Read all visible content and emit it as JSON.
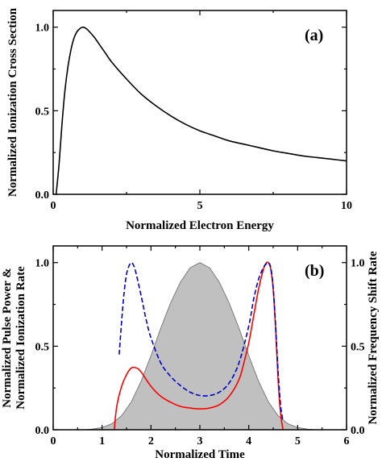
{
  "chart_data": [
    {
      "panel_label": "(a)",
      "type": "line",
      "xlabel": "Normalized Electron Energy",
      "ylabel": "Normalized Ionization Cross Section",
      "xlim": [
        0,
        10
      ],
      "ylim": [
        0,
        1.1
      ],
      "xticks": [
        0,
        5,
        10
      ],
      "xtick_labels": [
        "0",
        "5",
        "10"
      ],
      "yticks": [
        0,
        0.5,
        1.0
      ],
      "ytick_labels": [
        "0.0",
        "0.5",
        "1.0"
      ],
      "grid": false,
      "series": [
        {
          "color": "#000000",
          "style": "solid",
          "x": [
            0.1,
            0.2,
            0.3,
            0.4,
            0.5,
            0.6,
            0.7,
            0.8,
            0.9,
            1.0,
            1.1,
            1.2,
            1.4,
            1.6,
            1.8,
            2.0,
            2.5,
            3.0,
            3.5,
            4.0,
            4.5,
            5.0,
            5.5,
            6.0,
            6.5,
            7.0,
            7.5,
            8.0,
            8.5,
            9.0,
            9.5,
            10.0
          ],
          "y": [
            0.0,
            0.18,
            0.42,
            0.62,
            0.76,
            0.86,
            0.93,
            0.97,
            0.99,
            1.0,
            0.995,
            0.98,
            0.94,
            0.89,
            0.84,
            0.79,
            0.69,
            0.6,
            0.53,
            0.47,
            0.42,
            0.38,
            0.35,
            0.32,
            0.3,
            0.28,
            0.26,
            0.245,
            0.23,
            0.22,
            0.21,
            0.2
          ]
        }
      ]
    },
    {
      "panel_label": "(b)",
      "type": "line",
      "xlabel": "Normalized Time",
      "ylabel": "Normalized Pulse Power & Normalized Ionization Rate",
      "ylabel_lines": [
        "Normalized Pulse Power &",
        "Normalized Ionization Rate"
      ],
      "y2label": "Normalized Frequency Shift Rate",
      "xlim": [
        0,
        6
      ],
      "ylim": [
        0,
        1.1
      ],
      "xticks": [
        0,
        1,
        2,
        3,
        4,
        5,
        6
      ],
      "xtick_labels": [
        "0",
        "1",
        "2",
        "3",
        "4",
        "5",
        "6"
      ],
      "yticks": [
        0,
        0.5,
        1.0
      ],
      "ytick_labels": [
        "0.0",
        "0.5",
        "1.0"
      ],
      "y2ticks": [
        0,
        0.5,
        1.0
      ],
      "y2tick_labels": [
        "0.0",
        "0.5",
        "1.0"
      ],
      "grid": false,
      "series": [
        {
          "kind": "area",
          "color": "#000000",
          "fill": "#c0c0c0",
          "x": [
            0.0,
            0.6,
            0.8,
            1.0,
            1.2,
            1.4,
            1.6,
            1.8,
            2.0,
            2.2,
            2.4,
            2.6,
            2.8,
            3.0,
            3.2,
            3.4,
            3.6,
            3.8,
            4.0,
            4.2,
            4.4,
            4.6,
            4.8,
            5.0,
            5.2,
            5.4,
            6.0
          ],
          "y": [
            0.0,
            0.0,
            0.004,
            0.013,
            0.036,
            0.084,
            0.168,
            0.291,
            0.444,
            0.608,
            0.758,
            0.882,
            0.969,
            1.0,
            0.969,
            0.882,
            0.758,
            0.608,
            0.444,
            0.291,
            0.168,
            0.084,
            0.036,
            0.013,
            0.004,
            0.0,
            0.0
          ]
        },
        {
          "kind": "line",
          "color": "#ff0000",
          "style": "solid",
          "x": [
            1.25,
            1.3,
            1.4,
            1.5,
            1.6,
            1.7,
            1.8,
            2.0,
            2.2,
            2.4,
            2.6,
            2.8,
            3.0,
            3.2,
            3.4,
            3.6,
            3.8,
            3.9,
            4.0,
            4.1,
            4.2,
            4.3,
            4.35,
            4.4,
            4.45,
            4.5,
            4.55,
            4.6,
            4.65,
            4.7
          ],
          "y": [
            0.0,
            0.14,
            0.26,
            0.33,
            0.37,
            0.37,
            0.345,
            0.26,
            0.2,
            0.165,
            0.14,
            0.13,
            0.125,
            0.13,
            0.15,
            0.2,
            0.3,
            0.4,
            0.52,
            0.68,
            0.84,
            0.96,
            0.995,
            1.0,
            0.96,
            0.84,
            0.6,
            0.3,
            0.1,
            0.0
          ]
        },
        {
          "kind": "line",
          "color": "#0000cc",
          "style": "dashed",
          "x": [
            1.35,
            1.4,
            1.45,
            1.5,
            1.55,
            1.6,
            1.65,
            1.7,
            1.8,
            1.9,
            2.0,
            2.2,
            2.4,
            2.6,
            2.8,
            3.0,
            3.2,
            3.4,
            3.6,
            3.8,
            4.0,
            4.1,
            4.2,
            4.3,
            4.35,
            4.4,
            4.45,
            4.5,
            4.55,
            4.6,
            4.65,
            4.7
          ],
          "y": [
            0.45,
            0.65,
            0.82,
            0.93,
            0.98,
            1.0,
            0.98,
            0.93,
            0.8,
            0.66,
            0.55,
            0.4,
            0.32,
            0.265,
            0.225,
            0.205,
            0.205,
            0.225,
            0.28,
            0.4,
            0.62,
            0.78,
            0.9,
            0.97,
            0.99,
            1.0,
            0.97,
            0.85,
            0.62,
            0.35,
            0.15,
            0.05
          ]
        }
      ]
    }
  ]
}
